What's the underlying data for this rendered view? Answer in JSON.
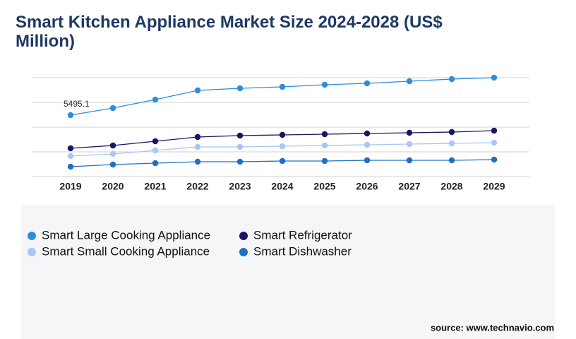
{
  "chart_data": {
    "type": "line",
    "title": "Smart Kitchen Appliance Market Size 2024-2028 (US$ Million)",
    "categories": [
      "2019",
      "2020",
      "2021",
      "2022",
      "2023",
      "2024",
      "2025",
      "2026",
      "2027",
      "2028",
      "2029"
    ],
    "series": [
      {
        "name": "Smart Large Cooking Appliance",
        "color": "#2d8fdc",
        "values": [
          5495.1,
          6127,
          6884,
          7706,
          7895,
          8022,
          8211,
          8338,
          8527,
          8716,
          8843
        ]
      },
      {
        "name": "Smart Refrigerator",
        "color": "#1b1464",
        "values": [
          2526,
          2779,
          3158,
          3537,
          3663,
          3726,
          3790,
          3853,
          3916,
          3979,
          4105
        ]
      },
      {
        "name": "Smart Small Cooking Appliance",
        "color": "#a9c6f7",
        "values": [
          1832,
          2021,
          2337,
          2653,
          2653,
          2716,
          2779,
          2842,
          2905,
          2968,
          3032
        ]
      },
      {
        "name": "Smart Dishwasher",
        "color": "#1f6fc5",
        "values": [
          884,
          1074,
          1200,
          1326,
          1326,
          1390,
          1390,
          1453,
          1453,
          1453,
          1516
        ]
      }
    ],
    "ylim": [
      0,
      8843
    ],
    "grid": true,
    "source": "source: www.technavio.com"
  }
}
